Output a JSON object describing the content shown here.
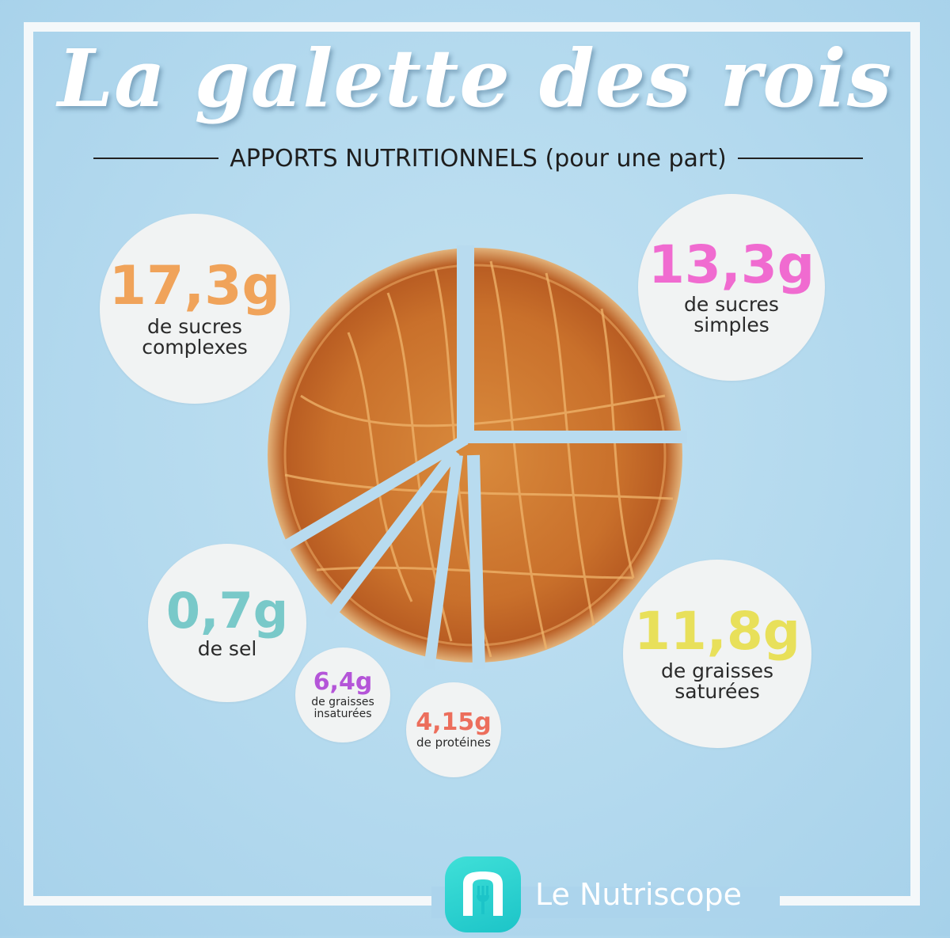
{
  "header": {
    "title": "La galette des rois",
    "subtitle": "APPORTS NUTRITIONNELS (pour une part)"
  },
  "nutrients": [
    {
      "value": "17,3g",
      "label_line1": "de sucres",
      "label_line2": "complexes",
      "color": "#f0a35a"
    },
    {
      "value": "13,3g",
      "label_line1": "de sucres",
      "label_line2": "simples",
      "color": "#f06bd0"
    },
    {
      "value": "0,7g",
      "label_line1": "de sel",
      "label_line2": "",
      "color": "#79c9c9"
    },
    {
      "value": "6,4g",
      "label_line1": "de graisses",
      "label_line2": "insaturées",
      "color": "#b455d8"
    },
    {
      "value": "4,15g",
      "label_line1": "de protéines",
      "label_line2": "",
      "color": "#ec6e5c"
    },
    {
      "value": "11,8g",
      "label_line1": "de graisses",
      "label_line2": "saturées",
      "color": "#e8e05a"
    }
  ],
  "brand": {
    "name": "Le Nutriscope",
    "icon": "fork-n-logo-icon"
  }
}
